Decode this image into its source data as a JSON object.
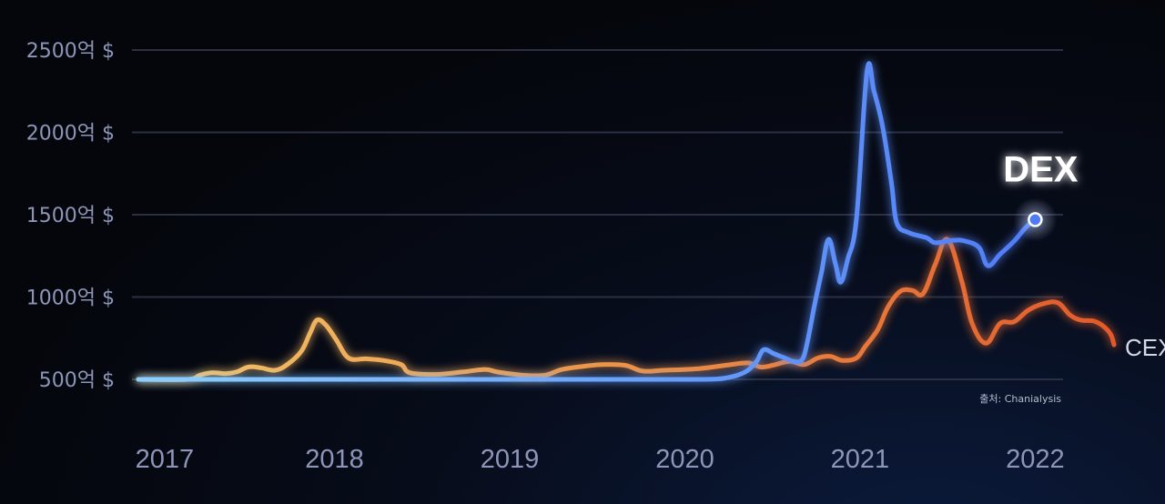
{
  "chart_data": {
    "type": "line",
    "title": "",
    "xlabel": "",
    "ylabel": "",
    "ylim": [
      500,
      2500
    ],
    "xlim": [
      2017.0,
      2022.3
    ],
    "y_ticks": [
      {
        "value": 500,
        "label": "500억 $"
      },
      {
        "value": 1000,
        "label": "1000억 $"
      },
      {
        "value": 1500,
        "label": "1500억 $"
      },
      {
        "value": 2000,
        "label": "2000억 $"
      },
      {
        "value": 2500,
        "label": "2500억 $"
      }
    ],
    "x_ticks": [
      {
        "value": 2017.15,
        "label": "2017"
      },
      {
        "value": 2018.12,
        "label": "2018"
      },
      {
        "value": 2019.12,
        "label": "2019"
      },
      {
        "value": 2020.12,
        "label": "2020"
      },
      {
        "value": 2021.12,
        "label": "2021"
      },
      {
        "value": 2022.12,
        "label": "2022"
      }
    ],
    "grid": true,
    "series": [
      {
        "name": "DEX",
        "color_start": "#8ccfff",
        "color_end": "#4f7cf6",
        "points": [
          [
            2017.0,
            500
          ],
          [
            2017.5,
            500
          ],
          [
            2018.0,
            500
          ],
          [
            2018.5,
            500
          ],
          [
            2019.0,
            500
          ],
          [
            2019.5,
            500
          ],
          [
            2020.0,
            500
          ],
          [
            2020.2,
            500
          ],
          [
            2020.3,
            502
          ],
          [
            2020.35,
            508
          ],
          [
            2020.42,
            525
          ],
          [
            2020.48,
            555
          ],
          [
            2020.53,
            610
          ],
          [
            2020.57,
            680
          ],
          [
            2020.63,
            655
          ],
          [
            2020.7,
            625
          ],
          [
            2020.74,
            610
          ],
          [
            2020.79,
            620
          ],
          [
            2020.82,
            730
          ],
          [
            2020.86,
            950
          ],
          [
            2020.9,
            1150
          ],
          [
            2020.94,
            1350
          ],
          [
            2020.98,
            1200
          ],
          [
            2021.01,
            1090
          ],
          [
            2021.05,
            1230
          ],
          [
            2021.1,
            1480
          ],
          [
            2021.16,
            2370
          ],
          [
            2021.2,
            2250
          ],
          [
            2021.25,
            2030
          ],
          [
            2021.3,
            1690
          ],
          [
            2021.33,
            1450
          ],
          [
            2021.4,
            1390
          ],
          [
            2021.5,
            1360
          ],
          [
            2021.55,
            1330
          ],
          [
            2021.65,
            1345
          ],
          [
            2021.72,
            1340
          ],
          [
            2021.8,
            1300
          ],
          [
            2021.85,
            1190
          ],
          [
            2021.92,
            1260
          ],
          [
            2022.0,
            1340
          ],
          [
            2022.06,
            1415
          ],
          [
            2022.1,
            1455
          ],
          [
            2022.12,
            1470
          ]
        ],
        "label": "DEX"
      },
      {
        "name": "CEX",
        "color_start": "#f3c46a",
        "color_end": "#e25a2b",
        "points": [
          [
            2017.0,
            500
          ],
          [
            2017.28,
            500
          ],
          [
            2017.35,
            525
          ],
          [
            2017.42,
            540
          ],
          [
            2017.5,
            535
          ],
          [
            2017.56,
            545
          ],
          [
            2017.63,
            575
          ],
          [
            2017.7,
            570
          ],
          [
            2017.78,
            555
          ],
          [
            2017.85,
            590
          ],
          [
            2017.93,
            670
          ],
          [
            2017.98,
            780
          ],
          [
            2018.02,
            860
          ],
          [
            2018.07,
            830
          ],
          [
            2018.13,
            740
          ],
          [
            2018.2,
            630
          ],
          [
            2018.3,
            625
          ],
          [
            2018.4,
            615
          ],
          [
            2018.5,
            590
          ],
          [
            2018.55,
            540
          ],
          [
            2018.7,
            530
          ],
          [
            2018.85,
            545
          ],
          [
            2018.98,
            560
          ],
          [
            2019.05,
            545
          ],
          [
            2019.2,
            525
          ],
          [
            2019.32,
            525
          ],
          [
            2019.42,
            560
          ],
          [
            2019.55,
            580
          ],
          [
            2019.65,
            590
          ],
          [
            2019.78,
            585
          ],
          [
            2019.88,
            550
          ],
          [
            2020.0,
            555
          ],
          [
            2020.2,
            565
          ],
          [
            2020.35,
            585
          ],
          [
            2020.48,
            600
          ],
          [
            2020.55,
            575
          ],
          [
            2020.62,
            585
          ],
          [
            2020.72,
            610
          ],
          [
            2020.8,
            590
          ],
          [
            2020.88,
            630
          ],
          [
            2020.95,
            640
          ],
          [
            2021.02,
            615
          ],
          [
            2021.1,
            630
          ],
          [
            2021.15,
            700
          ],
          [
            2021.22,
            800
          ],
          [
            2021.28,
            940
          ],
          [
            2021.35,
            1035
          ],
          [
            2021.42,
            1040
          ],
          [
            2021.48,
            1020
          ],
          [
            2021.55,
            1200
          ],
          [
            2021.62,
            1350
          ],
          [
            2021.7,
            1100
          ],
          [
            2021.76,
            840
          ],
          [
            2021.84,
            720
          ],
          [
            2021.92,
            840
          ],
          [
            2022.0,
            850
          ],
          [
            2022.08,
            920
          ],
          [
            2022.17,
            960
          ],
          [
            2022.25,
            965
          ],
          [
            2022.32,
            890
          ],
          [
            2022.38,
            860
          ],
          [
            2022.45,
            855
          ],
          [
            2022.5,
            830
          ],
          [
            2022.55,
            775
          ],
          [
            2022.57,
            710
          ]
        ],
        "label": "CEX"
      }
    ],
    "annotations": [
      "출처: Chanialysis"
    ],
    "legend": "inline-at-line-ends"
  }
}
